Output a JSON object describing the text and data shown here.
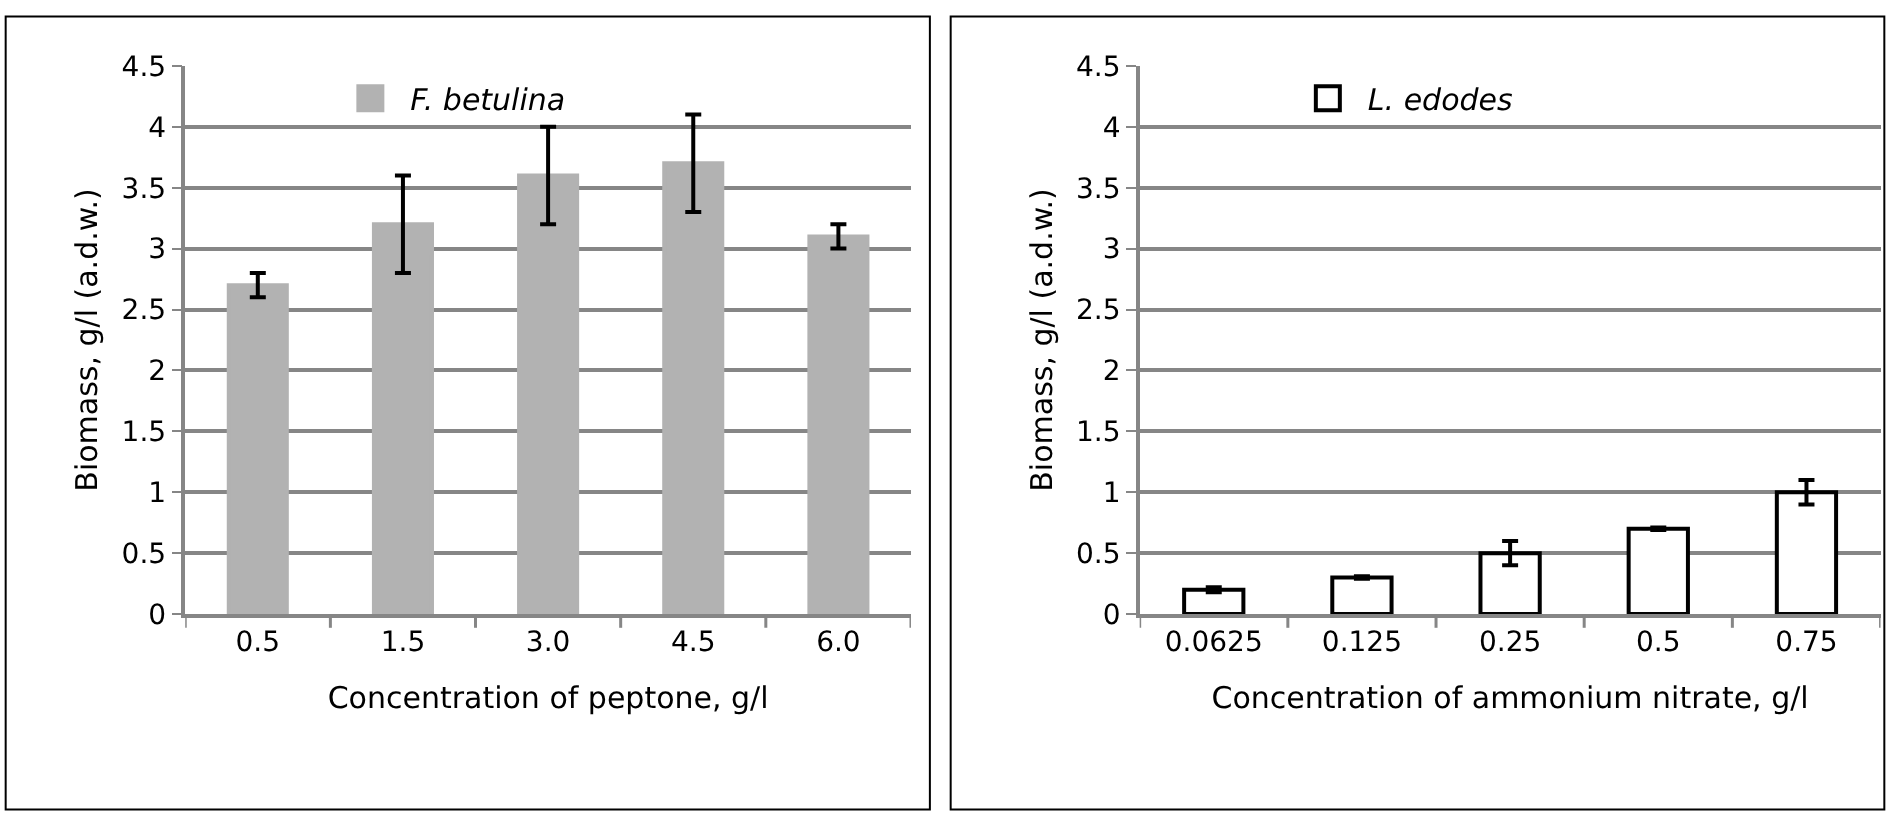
{
  "chart_data": [
    {
      "type": "bar",
      "xlabel": "Concentration of peptone, g/l",
      "ylabel": "Biomass, g/l (a.d.w.)",
      "categories": [
        "0.5",
        "1.5",
        "3.0",
        "4.5",
        "6.0"
      ],
      "series": [
        {
          "name": "F. betulina",
          "color": "#b2b2b2",
          "values": [
            2.7,
            3.2,
            3.6,
            3.7,
            3.1
          ],
          "errors": [
            0.1,
            0.4,
            0.4,
            0.4,
            0.1
          ]
        }
      ],
      "ylim": [
        0,
        4.5
      ],
      "yticks": [
        0,
        0.5,
        1,
        1.5,
        2,
        2.5,
        3,
        3.5,
        4,
        4.5
      ],
      "grid": "y",
      "legend": "top left"
    },
    {
      "type": "bar",
      "xlabel": "Concentration of ammonium nitrate, g/l",
      "ylabel": "Biomass, g/l (a.d.w.)",
      "categories": [
        "0.0625",
        "0.125",
        "0.25",
        "0.5",
        "0.75"
      ],
      "series": [
        {
          "name": "L. edodes",
          "color": "#ffffff",
          "values": [
            0.2,
            0.3,
            0.5,
            0.7,
            1.0
          ],
          "errors": [
            0.02,
            0.01,
            0.1,
            0.01,
            0.1
          ]
        }
      ],
      "ylim": [
        0,
        4.5
      ],
      "yticks": [
        0,
        0.5,
        1,
        1.5,
        2,
        2.5,
        3,
        3.5,
        4,
        4.5
      ],
      "grid": "y",
      "legend": "top left"
    }
  ]
}
